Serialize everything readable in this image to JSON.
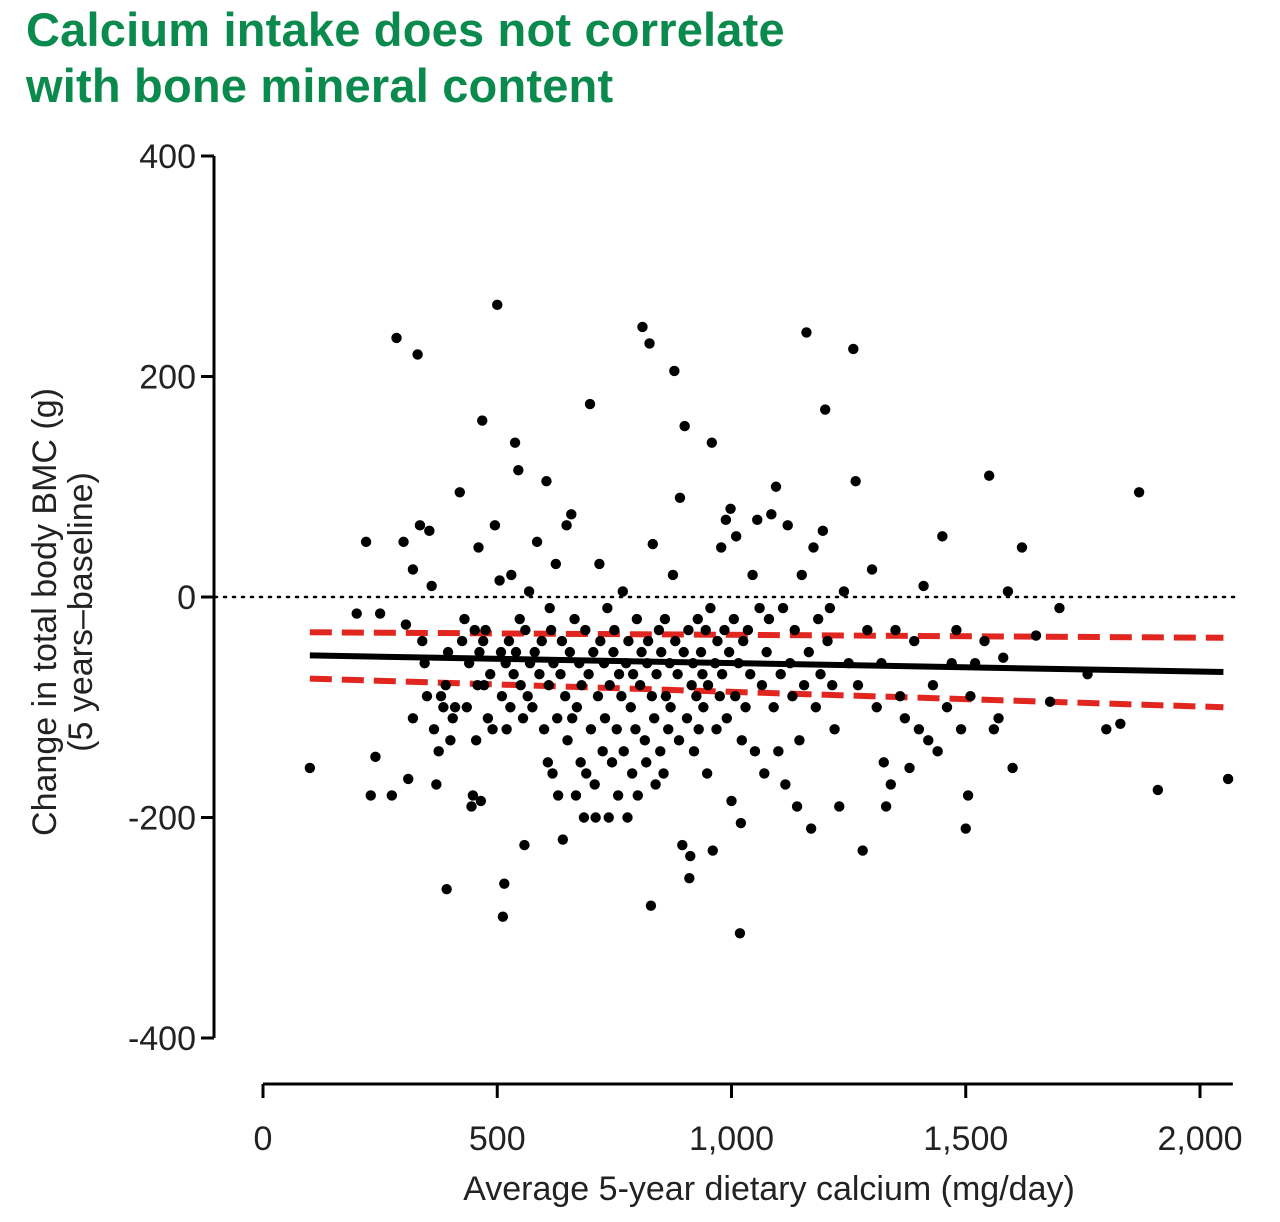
{
  "title_line1": "Calcium intake does not correlate",
  "title_line2": "with bone mineral content",
  "chart_data": {
    "type": "scatter",
    "title": "Calcium intake does not correlate with bone mineral content",
    "xlabel": "Average 5-year dietary calcium (mg/day)",
    "ylabel_line1": "Change in total body BMC (g)",
    "ylabel_line2": "(5 years–baseline)",
    "xlim": [
      0,
      2100
    ],
    "ylim": [
      -400,
      400
    ],
    "x_ticks": [
      0,
      500,
      1000,
      1500,
      2000
    ],
    "x_tick_labels": [
      "0",
      "500",
      "1,000",
      "1,500",
      "2,000"
    ],
    "y_ticks": [
      400,
      200,
      0,
      -200,
      -400
    ],
    "y_tick_labels": [
      "400",
      "200",
      "0",
      "-200",
      "-400"
    ],
    "reference_line": {
      "y": 0,
      "style": "dotted"
    },
    "regression": {
      "x": [
        100,
        2050
      ],
      "y": [
        -53,
        -68
      ],
      "color": "#000000"
    },
    "confidence_band": {
      "upper_y": [
        -32,
        -37
      ],
      "lower_y": [
        -74,
        -100
      ],
      "color": "#e0261f"
    },
    "points": [
      [
        100,
        -155
      ],
      [
        220,
        50
      ],
      [
        240,
        -145
      ],
      [
        230,
        -180
      ],
      [
        275,
        -180
      ],
      [
        200,
        -15
      ],
      [
        250,
        -15
      ],
      [
        285,
        235
      ],
      [
        300,
        50
      ],
      [
        305,
        -25
      ],
      [
        310,
        -165
      ],
      [
        320,
        25
      ],
      [
        320,
        -110
      ],
      [
        330,
        220
      ],
      [
        335,
        65
      ],
      [
        340,
        -40
      ],
      [
        345,
        -60
      ],
      [
        350,
        -90
      ],
      [
        355,
        60
      ],
      [
        360,
        10
      ],
      [
        365,
        -120
      ],
      [
        370,
        -170
      ],
      [
        375,
        -140
      ],
      [
        380,
        -90
      ],
      [
        385,
        -100
      ],
      [
        390,
        -80
      ],
      [
        392,
        -265
      ],
      [
        395,
        -50
      ],
      [
        400,
        -130
      ],
      [
        405,
        -110
      ],
      [
        410,
        -100
      ],
      [
        420,
        95
      ],
      [
        425,
        -40
      ],
      [
        430,
        -20
      ],
      [
        435,
        -100
      ],
      [
        440,
        -60
      ],
      [
        445,
        -190
      ],
      [
        448,
        -180
      ],
      [
        452,
        -30
      ],
      [
        455,
        -130
      ],
      [
        458,
        -80
      ],
      [
        460,
        45
      ],
      [
        462,
        -50
      ],
      [
        465,
        -185
      ],
      [
        468,
        160
      ],
      [
        470,
        -40
      ],
      [
        472,
        -80
      ],
      [
        475,
        -30
      ],
      [
        480,
        -110
      ],
      [
        485,
        -70
      ],
      [
        490,
        -120
      ],
      [
        495,
        65
      ],
      [
        500,
        265
      ],
      [
        505,
        15
      ],
      [
        508,
        -50
      ],
      [
        510,
        -90
      ],
      [
        512,
        -290
      ],
      [
        515,
        -260
      ],
      [
        518,
        -60
      ],
      [
        520,
        -120
      ],
      [
        525,
        -40
      ],
      [
        528,
        -100
      ],
      [
        530,
        20
      ],
      [
        535,
        -70
      ],
      [
        538,
        140
      ],
      [
        540,
        -50
      ],
      [
        545,
        115
      ],
      [
        548,
        -20
      ],
      [
        550,
        -80
      ],
      [
        555,
        -110
      ],
      [
        558,
        -225
      ],
      [
        560,
        -30
      ],
      [
        565,
        -90
      ],
      [
        568,
        5
      ],
      [
        570,
        -60
      ],
      [
        575,
        -100
      ],
      [
        580,
        -50
      ],
      [
        585,
        50
      ],
      [
        590,
        -70
      ],
      [
        595,
        -40
      ],
      [
        600,
        -120
      ],
      [
        605,
        105
      ],
      [
        608,
        -150
      ],
      [
        610,
        -80
      ],
      [
        612,
        -10
      ],
      [
        615,
        -30
      ],
      [
        618,
        -160
      ],
      [
        620,
        -60
      ],
      [
        625,
        30
      ],
      [
        628,
        -110
      ],
      [
        630,
        -180
      ],
      [
        635,
        -70
      ],
      [
        638,
        -40
      ],
      [
        640,
        -220
      ],
      [
        645,
        -90
      ],
      [
        648,
        65
      ],
      [
        650,
        -130
      ],
      [
        655,
        -50
      ],
      [
        658,
        75
      ],
      [
        660,
        -110
      ],
      [
        665,
        -20
      ],
      [
        668,
        -180
      ],
      [
        670,
        -100
      ],
      [
        675,
        -60
      ],
      [
        678,
        -150
      ],
      [
        680,
        -80
      ],
      [
        685,
        -200
      ],
      [
        688,
        -30
      ],
      [
        690,
        -160
      ],
      [
        695,
        -70
      ],
      [
        698,
        175
      ],
      [
        700,
        -120
      ],
      [
        705,
        -50
      ],
      [
        708,
        -170
      ],
      [
        710,
        -200
      ],
      [
        715,
        -90
      ],
      [
        718,
        30
      ],
      [
        720,
        -40
      ],
      [
        725,
        -140
      ],
      [
        728,
        -60
      ],
      [
        730,
        -110
      ],
      [
        735,
        -10
      ],
      [
        738,
        -200
      ],
      [
        740,
        -80
      ],
      [
        745,
        -150
      ],
      [
        748,
        -50
      ],
      [
        750,
        -30
      ],
      [
        755,
        -120
      ],
      [
        758,
        -180
      ],
      [
        760,
        -70
      ],
      [
        765,
        -90
      ],
      [
        768,
        5
      ],
      [
        770,
        -140
      ],
      [
        775,
        -60
      ],
      [
        778,
        -200
      ],
      [
        780,
        -40
      ],
      [
        785,
        -100
      ],
      [
        788,
        -160
      ],
      [
        790,
        -70
      ],
      [
        795,
        -120
      ],
      [
        798,
        -20
      ],
      [
        800,
        -180
      ],
      [
        805,
        -80
      ],
      [
        808,
        -50
      ],
      [
        810,
        245
      ],
      [
        815,
        -130
      ],
      [
        818,
        -150
      ],
      [
        820,
        -60
      ],
      [
        822,
        -40
      ],
      [
        825,
        230
      ],
      [
        828,
        -280
      ],
      [
        830,
        -90
      ],
      [
        832,
        48
      ],
      [
        835,
        -110
      ],
      [
        838,
        -170
      ],
      [
        840,
        -70
      ],
      [
        845,
        -30
      ],
      [
        848,
        -140
      ],
      [
        850,
        -50
      ],
      [
        855,
        -160
      ],
      [
        858,
        -20
      ],
      [
        860,
        -90
      ],
      [
        865,
        -120
      ],
      [
        868,
        -60
      ],
      [
        870,
        -100
      ],
      [
        875,
        20
      ],
      [
        878,
        205
      ],
      [
        880,
        -40
      ],
      [
        885,
        -70
      ],
      [
        888,
        -130
      ],
      [
        890,
        90
      ],
      [
        895,
        -225
      ],
      [
        898,
        -50
      ],
      [
        900,
        155
      ],
      [
        905,
        -110
      ],
      [
        908,
        -30
      ],
      [
        910,
        -255
      ],
      [
        912,
        -235
      ],
      [
        915,
        -80
      ],
      [
        918,
        -60
      ],
      [
        920,
        -140
      ],
      [
        925,
        -90
      ],
      [
        928,
        -20
      ],
      [
        930,
        -120
      ],
      [
        935,
        -50
      ],
      [
        938,
        -70
      ],
      [
        940,
        -100
      ],
      [
        945,
        -30
      ],
      [
        948,
        -160
      ],
      [
        950,
        -80
      ],
      [
        955,
        -10
      ],
      [
        958,
        140
      ],
      [
        960,
        -230
      ],
      [
        965,
        -60
      ],
      [
        968,
        -120
      ],
      [
        970,
        -40
      ],
      [
        975,
        -90
      ],
      [
        978,
        45
      ],
      [
        980,
        -70
      ],
      [
        985,
        -30
      ],
      [
        988,
        70
      ],
      [
        990,
        -110
      ],
      [
        995,
        -50
      ],
      [
        998,
        80
      ],
      [
        1000,
        -185
      ],
      [
        1005,
        -20
      ],
      [
        1008,
        -90
      ],
      [
        1010,
        55
      ],
      [
        1015,
        -60
      ],
      [
        1018,
        -305
      ],
      [
        1020,
        -205
      ],
      [
        1022,
        -130
      ],
      [
        1025,
        -40
      ],
      [
        1030,
        -100
      ],
      [
        1035,
        -30
      ],
      [
        1040,
        -70
      ],
      [
        1045,
        20
      ],
      [
        1050,
        -140
      ],
      [
        1055,
        70
      ],
      [
        1060,
        -10
      ],
      [
        1065,
        -80
      ],
      [
        1070,
        -160
      ],
      [
        1075,
        -50
      ],
      [
        1080,
        -20
      ],
      [
        1085,
        75
      ],
      [
        1090,
        -100
      ],
      [
        1095,
        100
      ],
      [
        1100,
        -140
      ],
      [
        1105,
        -70
      ],
      [
        1110,
        -10
      ],
      [
        1115,
        -170
      ],
      [
        1120,
        65
      ],
      [
        1125,
        -60
      ],
      [
        1130,
        -90
      ],
      [
        1135,
        -30
      ],
      [
        1140,
        -190
      ],
      [
        1145,
        -130
      ],
      [
        1150,
        20
      ],
      [
        1155,
        -80
      ],
      [
        1160,
        240
      ],
      [
        1165,
        -50
      ],
      [
        1170,
        -210
      ],
      [
        1175,
        45
      ],
      [
        1180,
        -100
      ],
      [
        1185,
        -20
      ],
      [
        1190,
        -70
      ],
      [
        1195,
        60
      ],
      [
        1200,
        170
      ],
      [
        1205,
        -40
      ],
      [
        1210,
        -10
      ],
      [
        1215,
        -80
      ],
      [
        1220,
        -120
      ],
      [
        1230,
        -190
      ],
      [
        1240,
        5
      ],
      [
        1250,
        -60
      ],
      [
        1260,
        225
      ],
      [
        1265,
        105
      ],
      [
        1270,
        -80
      ],
      [
        1280,
        -230
      ],
      [
        1290,
        -30
      ],
      [
        1300,
        25
      ],
      [
        1310,
        -100
      ],
      [
        1320,
        -60
      ],
      [
        1325,
        -150
      ],
      [
        1330,
        -190
      ],
      [
        1340,
        -170
      ],
      [
        1350,
        -30
      ],
      [
        1360,
        -90
      ],
      [
        1370,
        -110
      ],
      [
        1380,
        -155
      ],
      [
        1390,
        -40
      ],
      [
        1400,
        -120
      ],
      [
        1410,
        10
      ],
      [
        1420,
        -130
      ],
      [
        1430,
        -80
      ],
      [
        1440,
        -140
      ],
      [
        1450,
        55
      ],
      [
        1460,
        -100
      ],
      [
        1470,
        -60
      ],
      [
        1480,
        -30
      ],
      [
        1490,
        -120
      ],
      [
        1500,
        -210
      ],
      [
        1505,
        -180
      ],
      [
        1510,
        -90
      ],
      [
        1520,
        -60
      ],
      [
        1540,
        -40
      ],
      [
        1550,
        110
      ],
      [
        1560,
        -120
      ],
      [
        1570,
        -110
      ],
      [
        1580,
        -55
      ],
      [
        1590,
        5
      ],
      [
        1600,
        -155
      ],
      [
        1620,
        45
      ],
      [
        1650,
        -35
      ],
      [
        1680,
        -95
      ],
      [
        1700,
        -10
      ],
      [
        1760,
        -70
      ],
      [
        1800,
        -120
      ],
      [
        1830,
        -115
      ],
      [
        1870,
        95
      ],
      [
        1910,
        -175
      ],
      [
        2060,
        -165
      ]
    ]
  }
}
